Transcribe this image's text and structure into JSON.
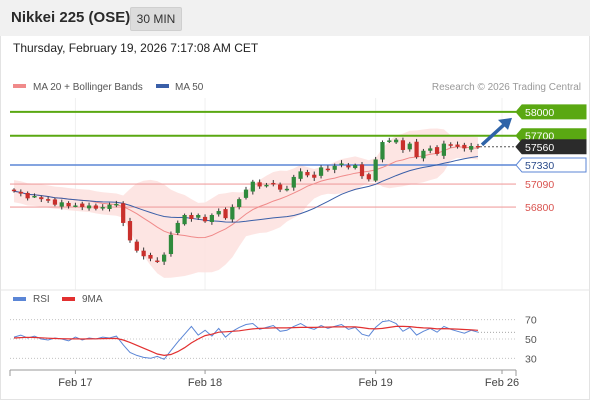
{
  "header": {
    "instrument": "Nikkei 225 (OSE)",
    "timeframe": "30 MIN",
    "timestamp": "Thursday, February 19, 2026 7:17:08 AM CET"
  },
  "colors": {
    "candle_up": "#2f8a3c",
    "candle_down": "#c9302c",
    "bollinger_fill": "#fde0de",
    "ma20": "#f08a8a",
    "ma50": "#3a5fa8",
    "resistance": "#5aa812",
    "pivot": "#5b86d6",
    "support": "#f0a0a0",
    "last_price": "#2b2b2b",
    "rsi": "#5b86d6",
    "rsi_ma": "#e23030",
    "arrow": "#2e63a8"
  },
  "chart_data": [
    {
      "type": "candlestick",
      "legend": [
        {
          "label": "MA 20 + Bollinger Bands",
          "color": "#f08a8a"
        },
        {
          "label": "MA 50",
          "color": "#3a5fa8"
        }
      ],
      "watermark": "Research © 2026 Trading Central",
      "x_tick_labels": [
        "Feb 17",
        "Feb 18",
        "Feb 19",
        "Feb 26"
      ],
      "ylim": [
        55830,
        58150
      ],
      "close_series": [
        57000,
        56970,
        56910,
        56940,
        56900,
        56880,
        56830,
        56860,
        56810,
        56820,
        56800,
        56820,
        56780,
        56800,
        56830,
        56840,
        56600,
        56380,
        56250,
        56180,
        56150,
        56120,
        56200,
        56450,
        56600,
        56700,
        56650,
        56700,
        56620,
        56700,
        56750,
        56660,
        56800,
        56900,
        57020,
        57120,
        57060,
        57080,
        57100,
        57020,
        57030,
        57180,
        57250,
        57200,
        57170,
        57300,
        57270,
        57320,
        57350,
        57300,
        57330,
        57190,
        57150,
        57400,
        57620,
        57640,
        57650,
        57520,
        57600,
        57430,
        57510,
        57540,
        57470,
        57600,
        57580,
        57560,
        57540,
        57570,
        57560
      ],
      "price_levels": [
        {
          "label": "58000",
          "kind": "resistance",
          "value": 58000
        },
        {
          "label": "57700",
          "kind": "resistance",
          "value": 57700
        },
        {
          "label": "57560",
          "kind": "last",
          "value": 57560
        },
        {
          "label": "57330",
          "kind": "pivot",
          "value": 57330
        },
        {
          "label": "57090",
          "kind": "support",
          "value": 57090
        },
        {
          "label": "56800",
          "kind": "support",
          "value": 56800
        }
      ],
      "projection": {
        "direction": "up",
        "from": 57560,
        "to": 58000
      }
    },
    {
      "type": "line",
      "legend": [
        {
          "label": "RSI",
          "color": "#5b86d6"
        },
        {
          "label": "9MA",
          "color": "#e23030"
        }
      ],
      "ylim": [
        20,
        80
      ],
      "y_tick_labels": [
        "70",
        "50",
        "30"
      ],
      "rsi_series": [
        52,
        54,
        51,
        53,
        50,
        49,
        51,
        50,
        48,
        52,
        49,
        51,
        50,
        52,
        51,
        53,
        44,
        36,
        33,
        31,
        30,
        32,
        29,
        38,
        47,
        55,
        63,
        54,
        59,
        53,
        61,
        52,
        58,
        62,
        65,
        66,
        60,
        62,
        64,
        58,
        59,
        63,
        66,
        62,
        60,
        64,
        61,
        63,
        65,
        60,
        62,
        55,
        53,
        62,
        68,
        69,
        66,
        58,
        62,
        54,
        58,
        61,
        57,
        63,
        60,
        58,
        56,
        59,
        57
      ],
      "rsi_ma_series": [
        51,
        51.5,
        51.8,
        51.6,
        51.2,
        50.8,
        50.5,
        50.3,
        50.1,
        50.2,
        50,
        50.1,
        50.2,
        50.4,
        50.5,
        50.6,
        49,
        46.5,
        43.5,
        40.5,
        37.5,
        34.5,
        33,
        34,
        37,
        41,
        46,
        50,
        53.5,
        55,
        57,
        57.5,
        58,
        58.5,
        59.5,
        60.5,
        61,
        61.2,
        61.5,
        61.5,
        61.5,
        61.8,
        62,
        62,
        62,
        62.2,
        62.3,
        62.5,
        62.6,
        62.5,
        62.5,
        61.8,
        60.8,
        60.5,
        61,
        62,
        63,
        63,
        62.8,
        62,
        61.5,
        61.3,
        60.5,
        60.8,
        60.5,
        60.2,
        59.8,
        59.5,
        59
      ]
    }
  ]
}
